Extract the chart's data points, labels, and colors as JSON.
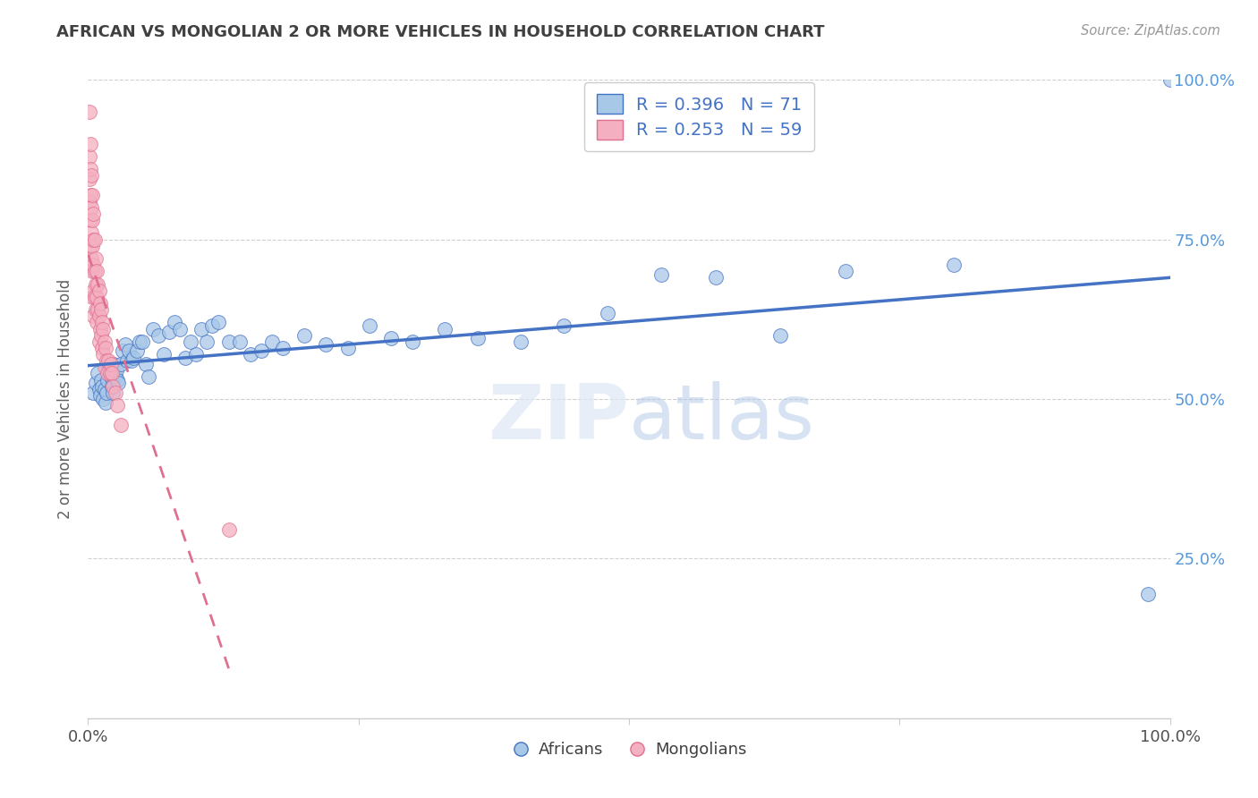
{
  "title": "AFRICAN VS MONGOLIAN 2 OR MORE VEHICLES IN HOUSEHOLD CORRELATION CHART",
  "source": "Source: ZipAtlas.com",
  "ylabel": "2 or more Vehicles in Household",
  "watermark": "ZIPatlas",
  "legend_africans": "Africans",
  "legend_mongolians": "Mongolians",
  "R_africans": 0.396,
  "N_africans": 71,
  "R_mongolians": 0.253,
  "N_mongolians": 59,
  "xlim": [
    0,
    1
  ],
  "ylim": [
    0,
    1
  ],
  "african_color": "#a8c8e8",
  "mongolian_color": "#f4afc0",
  "african_line_color": "#4472c4",
  "mongolian_line_color": "#e07090",
  "background_color": "#ffffff",
  "grid_color": "#d0d0d0",
  "title_color": "#404040",
  "right_ytick_color": "#5599dd",
  "legend_R_color": "#4472c4",
  "africans_x": [
    0.005,
    0.007,
    0.009,
    0.01,
    0.011,
    0.012,
    0.013,
    0.014,
    0.015,
    0.016,
    0.017,
    0.018,
    0.019,
    0.02,
    0.021,
    0.022,
    0.023,
    0.024,
    0.025,
    0.026,
    0.027,
    0.028,
    0.03,
    0.032,
    0.034,
    0.036,
    0.038,
    0.04,
    0.042,
    0.045,
    0.048,
    0.05,
    0.053,
    0.056,
    0.06,
    0.065,
    0.07,
    0.075,
    0.08,
    0.085,
    0.09,
    0.095,
    0.1,
    0.105,
    0.11,
    0.115,
    0.12,
    0.13,
    0.14,
    0.15,
    0.16,
    0.17,
    0.18,
    0.2,
    0.22,
    0.24,
    0.26,
    0.28,
    0.3,
    0.33,
    0.36,
    0.4,
    0.44,
    0.48,
    0.53,
    0.58,
    0.64,
    0.7,
    0.8,
    0.98,
    1.0
  ],
  "africans_y": [
    0.51,
    0.525,
    0.54,
    0.515,
    0.505,
    0.53,
    0.52,
    0.5,
    0.515,
    0.495,
    0.51,
    0.53,
    0.545,
    0.545,
    0.535,
    0.52,
    0.51,
    0.555,
    0.535,
    0.545,
    0.53,
    0.525,
    0.555,
    0.575,
    0.585,
    0.56,
    0.575,
    0.56,
    0.565,
    0.575,
    0.59,
    0.59,
    0.555,
    0.535,
    0.61,
    0.6,
    0.57,
    0.605,
    0.62,
    0.61,
    0.565,
    0.59,
    0.57,
    0.61,
    0.59,
    0.615,
    0.62,
    0.59,
    0.59,
    0.57,
    0.575,
    0.59,
    0.58,
    0.6,
    0.585,
    0.58,
    0.615,
    0.595,
    0.59,
    0.61,
    0.595,
    0.59,
    0.615,
    0.635,
    0.695,
    0.69,
    0.6,
    0.7,
    0.71,
    0.195,
    1.0
  ],
  "mongolians_x": [
    0.001,
    0.001,
    0.001,
    0.001,
    0.002,
    0.002,
    0.002,
    0.002,
    0.002,
    0.003,
    0.003,
    0.003,
    0.003,
    0.004,
    0.004,
    0.004,
    0.004,
    0.004,
    0.005,
    0.005,
    0.005,
    0.005,
    0.005,
    0.006,
    0.006,
    0.006,
    0.007,
    0.007,
    0.007,
    0.008,
    0.008,
    0.008,
    0.009,
    0.009,
    0.01,
    0.01,
    0.01,
    0.011,
    0.011,
    0.012,
    0.012,
    0.013,
    0.013,
    0.014,
    0.014,
    0.015,
    0.015,
    0.016,
    0.017,
    0.018,
    0.019,
    0.02,
    0.021,
    0.022,
    0.023,
    0.025,
    0.027,
    0.03,
    0.13
  ],
  "mongolians_y": [
    0.95,
    0.88,
    0.845,
    0.81,
    0.9,
    0.86,
    0.82,
    0.78,
    0.74,
    0.85,
    0.8,
    0.76,
    0.72,
    0.82,
    0.78,
    0.74,
    0.7,
    0.66,
    0.79,
    0.75,
    0.71,
    0.67,
    0.63,
    0.75,
    0.7,
    0.66,
    0.72,
    0.68,
    0.64,
    0.7,
    0.66,
    0.62,
    0.68,
    0.64,
    0.67,
    0.63,
    0.59,
    0.65,
    0.61,
    0.64,
    0.6,
    0.62,
    0.58,
    0.61,
    0.57,
    0.59,
    0.55,
    0.58,
    0.56,
    0.54,
    0.56,
    0.54,
    0.555,
    0.54,
    0.52,
    0.51,
    0.49,
    0.46,
    0.295
  ]
}
